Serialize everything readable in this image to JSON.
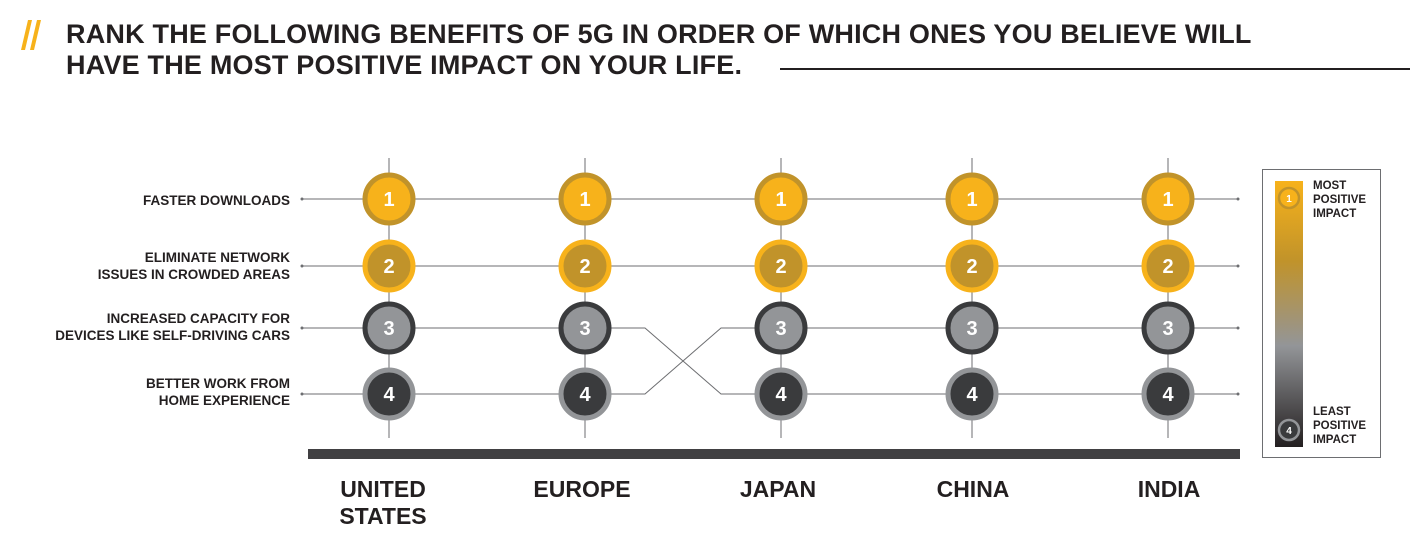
{
  "title": {
    "line1": "RANK THE FOLLOWING BENEFITS OF 5G IN ORDER OF WHICH ONES YOU BELIEVE WILL",
    "line2": "HAVE THE MOST POSITIVE IMPACT ON YOUR LIFE."
  },
  "colors": {
    "rank1_fill": "#f7b21b",
    "rank1_ring": "#c1932a",
    "rank2_fill": "#c1932a",
    "rank2_ring": "#f7b21b",
    "rank3_fill": "#939598",
    "rank3_ring": "#3a3b3d",
    "rank4_fill": "#3a3b3d",
    "rank4_ring": "#939598",
    "text_dark": "#231f20",
    "baseline": "#414042"
  },
  "chart_data": {
    "type": "table",
    "benefits": [
      [
        "FASTER DOWNLOADS"
      ],
      [
        "ELIMINATE NETWORK",
        "ISSUES IN CROWDED AREAS"
      ],
      [
        "INCREASED CAPACITY FOR",
        "DEVICES LIKE SELF-DRIVING CARS"
      ],
      [
        "BETTER WORK FROM",
        "HOME EXPERIENCE"
      ]
    ],
    "regions": [
      {
        "name": [
          "UNITED",
          "STATES"
        ],
        "ranks": [
          1,
          2,
          3,
          4
        ]
      },
      {
        "name": [
          "EUROPE"
        ],
        "ranks": [
          1,
          2,
          3,
          4
        ]
      },
      {
        "name": [
          "JAPAN"
        ],
        "ranks": [
          1,
          2,
          4,
          3
        ]
      },
      {
        "name": [
          "CHINA"
        ],
        "ranks": [
          1,
          2,
          4,
          3
        ]
      },
      {
        "name": [
          "INDIA"
        ],
        "ranks": [
          1,
          2,
          4,
          3
        ]
      }
    ]
  },
  "legend": {
    "top": [
      "MOST",
      "POSITIVE",
      "IMPACT"
    ],
    "bottom": [
      "LEAST",
      "POSITIVE",
      "IMPACT"
    ],
    "top_rank": "1",
    "bottom_rank": "4"
  }
}
